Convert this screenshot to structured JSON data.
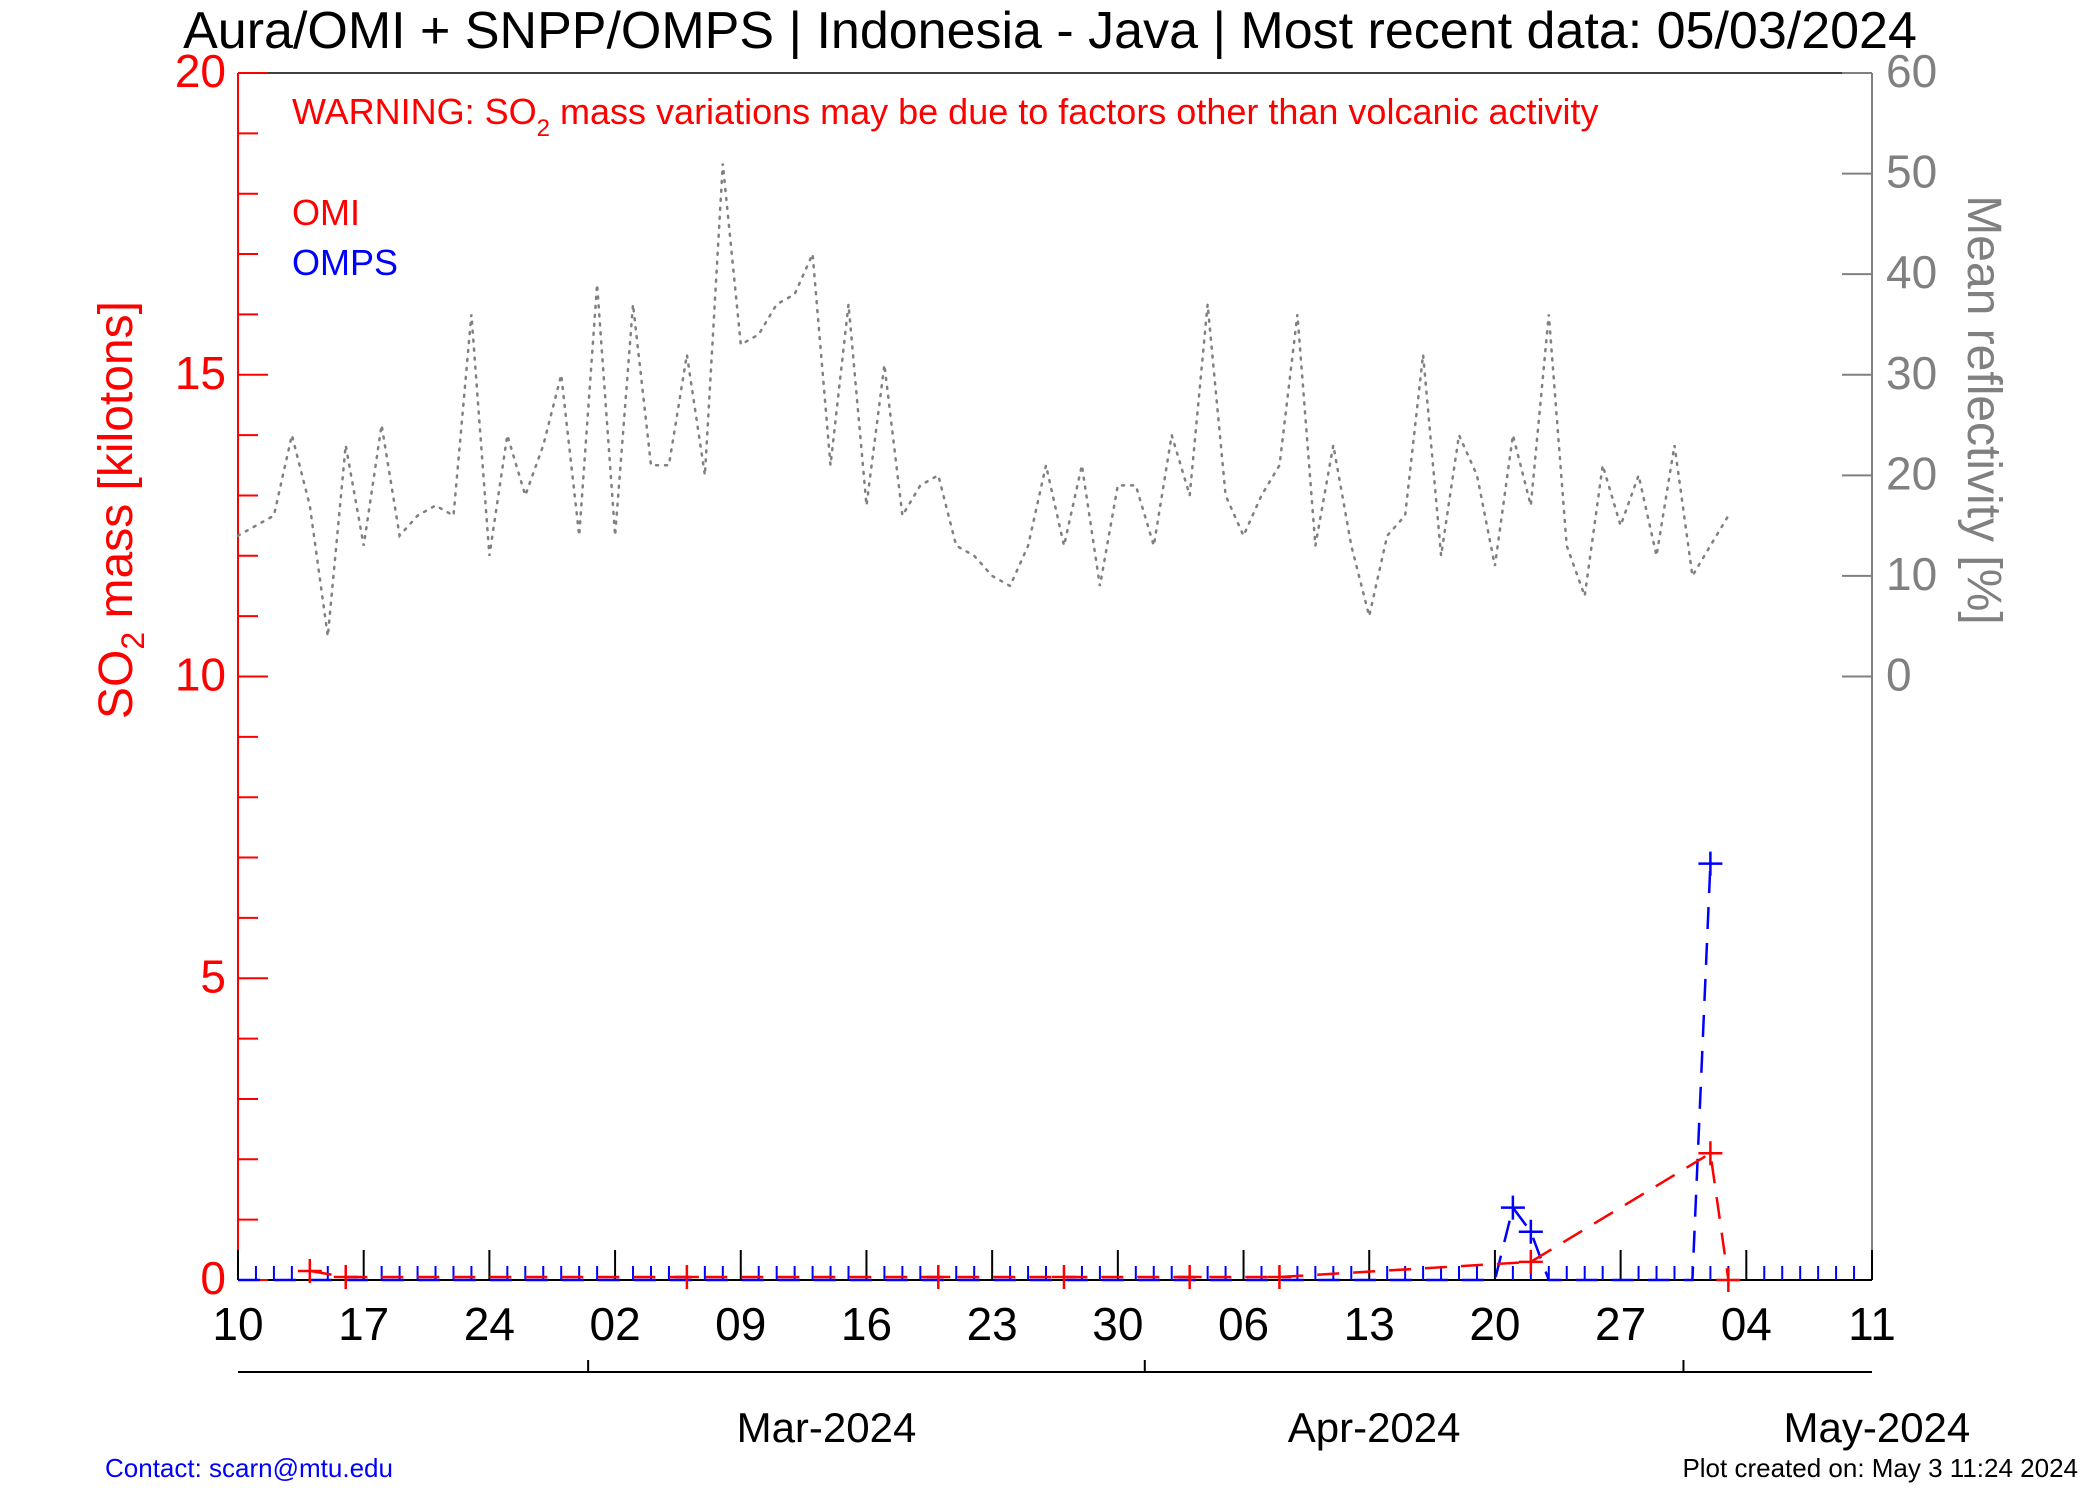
{
  "chart_data": {
    "type": "line",
    "title": "Aura/OMI + SNPP/OMPS | Indonesia - Java | Most recent data: 05/03/2024",
    "left_axis": {
      "label_main": "SO",
      "label_sub": "2",
      "label_rest": " mass [kilotons]",
      "ylim": [
        0,
        20
      ],
      "ticks": [
        0,
        5,
        10,
        15,
        20
      ],
      "tick_labels": [
        "0",
        "5",
        "10",
        "15",
        "20"
      ],
      "color": "#ff0000"
    },
    "right_axis": {
      "label": "Mean reflectivity [%]",
      "ylim": [
        -60,
        60
      ],
      "ticks": [
        0,
        10,
        20,
        30,
        40,
        50,
        60
      ],
      "tick_labels": [
        "0",
        "10",
        "20",
        "30",
        "40",
        "50",
        "60"
      ],
      "color": "#808080"
    },
    "x_axis": {
      "xlim": [
        0,
        91
      ],
      "tick_days": [
        0,
        7,
        14,
        21,
        28,
        35,
        42,
        49,
        56,
        63,
        70,
        77,
        84,
        91
      ],
      "tick_labels": [
        "10",
        "17",
        "24",
        "02",
        "09",
        "16",
        "23",
        "30",
        "06",
        "13",
        "20",
        "27",
        "04",
        "11"
      ],
      "month_boundaries": [
        19.5,
        50.5,
        80.5
      ],
      "months": [
        {
          "label": "Mar-2024",
          "center": 35
        },
        {
          "label": "Apr-2024",
          "center": 65.5
        },
        {
          "label": "May-2024",
          "center": 93.5
        }
      ]
    },
    "warning": {
      "prefix": "WARNING: SO",
      "sub": "2",
      "suffix": " mass variations may be due to factors other than volcanic activity"
    },
    "legend": [
      {
        "label": "OMI",
        "color": "#ff0000"
      },
      {
        "label": "OMPS",
        "color": "#0000ff"
      }
    ],
    "series": [
      {
        "name": "OMI",
        "color": "#ff0000",
        "style": "dashed",
        "marker": "plus",
        "points": [
          [
            4,
            0.15
          ],
          [
            6,
            0.05
          ],
          [
            25,
            0.05
          ],
          [
            39,
            0.05
          ],
          [
            46,
            0.05
          ],
          [
            53,
            0.05
          ],
          [
            58,
            0.05
          ],
          [
            72,
            0.3
          ],
          [
            82,
            2.1
          ],
          [
            83,
            0.0
          ]
        ]
      },
      {
        "name": "OMPS",
        "color": "#0000ff",
        "style": "dashed",
        "marker": "plus",
        "days": [
          0,
          1,
          2,
          3,
          4,
          5,
          6,
          7,
          8,
          9,
          10,
          11,
          12,
          13,
          14,
          15,
          16,
          17,
          18,
          19,
          20,
          21,
          22,
          23,
          24,
          25,
          26,
          27,
          28,
          29,
          30,
          31,
          32,
          33,
          34,
          35,
          36,
          37,
          38,
          39,
          40,
          41,
          42,
          43,
          44,
          45,
          46,
          47,
          48,
          49,
          50,
          51,
          52,
          53,
          54,
          55,
          56,
          57,
          58,
          59,
          60,
          61,
          62,
          63,
          64,
          65,
          66,
          67,
          68,
          69,
          70,
          71,
          72,
          73,
          74,
          75,
          76,
          77,
          78,
          79,
          80,
          81,
          82
        ],
        "values": [
          0,
          0,
          0,
          0,
          0,
          0,
          0,
          0,
          0,
          0,
          0,
          0,
          0,
          0,
          0,
          0,
          0,
          0,
          0,
          0,
          0,
          0,
          0,
          0,
          0,
          0,
          0,
          0,
          0,
          0,
          0,
          0,
          0,
          0,
          0,
          0,
          0,
          0,
          0,
          0,
          0,
          0,
          0,
          0,
          0,
          0,
          0,
          0,
          0,
          0,
          0,
          0,
          0,
          0,
          0,
          0,
          0,
          0,
          0,
          0,
          0,
          0,
          0,
          0,
          0,
          0,
          0,
          0,
          0,
          0,
          0,
          1.2,
          0.8,
          0,
          0,
          0,
          0,
          0,
          0,
          0,
          0,
          0,
          6.9
        ]
      },
      {
        "name": "Mean reflectivity",
        "color": "#808080",
        "style": "dotted",
        "marker": "none",
        "days": [
          0,
          1,
          2,
          3,
          4,
          5,
          6,
          7,
          8,
          9,
          10,
          11,
          12,
          13,
          14,
          15,
          16,
          17,
          18,
          19,
          20,
          21,
          22,
          23,
          24,
          25,
          26,
          27,
          28,
          29,
          30,
          31,
          32,
          33,
          34,
          35,
          36,
          37,
          38,
          39,
          40,
          41,
          42,
          43,
          44,
          45,
          46,
          47,
          48,
          49,
          50,
          51,
          52,
          53,
          54,
          55,
          56,
          57,
          58,
          59,
          60,
          61,
          62,
          63,
          64,
          65,
          66,
          67,
          68,
          69,
          70,
          71,
          72,
          73,
          74,
          75,
          76,
          77,
          78,
          79,
          80,
          81,
          82,
          83
        ],
        "values": [
          14,
          15,
          16,
          24,
          17,
          4,
          23,
          13,
          25,
          14,
          16,
          17,
          16,
          36,
          12,
          24,
          18,
          23,
          30,
          14,
          39,
          14,
          37,
          21,
          21,
          32,
          20,
          51,
          33,
          34,
          37,
          38,
          42,
          21,
          37,
          17,
          31,
          16,
          19,
          20,
          13,
          12,
          10,
          9,
          13,
          21,
          13,
          21,
          9,
          19,
          19,
          13,
          24,
          18,
          37,
          18,
          14,
          18,
          21,
          36,
          13,
          23,
          13,
          6,
          14,
          16,
          32,
          12,
          24,
          20,
          11,
          24,
          17,
          36,
          13,
          8,
          21,
          15,
          20,
          12,
          23,
          10,
          13,
          16
        ]
      }
    ]
  },
  "footer": {
    "contact": "Contact: scarn@mtu.edu",
    "created": "Plot created on: May  3 11:24 2024"
  }
}
